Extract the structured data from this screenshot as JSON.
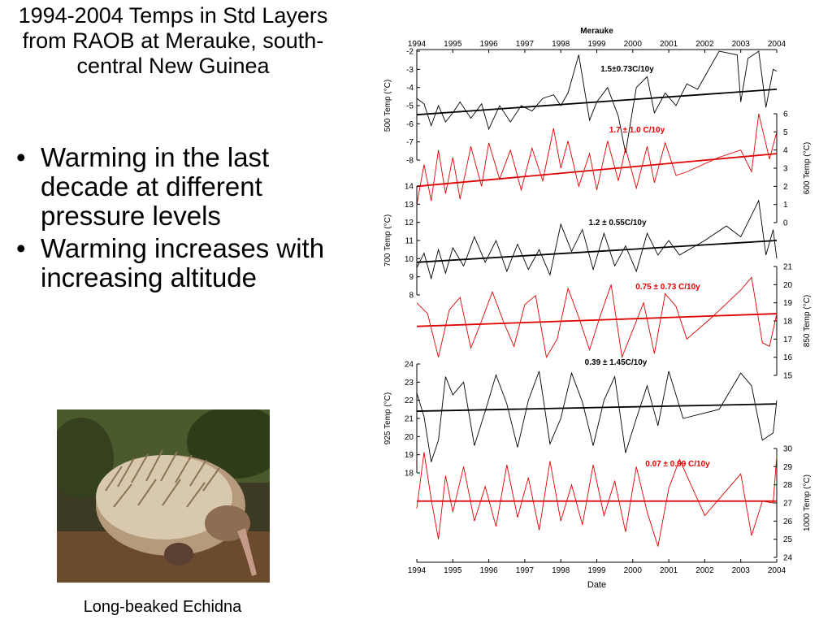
{
  "slide": {
    "title": "1994-2004 Temps in Std Layers from RAOB at Merauke, south-central New Guinea",
    "bullets": [
      "Warming in the last decade at different pressure levels",
      "Warming increases with increasing altitude"
    ],
    "caption": "Long-beaked Echidna"
  },
  "image": {
    "subject": "echidna-photo"
  },
  "chart_data": {
    "type": "line",
    "title": "Merauke",
    "xlabel": "Date",
    "xlim": [
      1994,
      2004
    ],
    "xticks": [
      "1994",
      "1995",
      "1996",
      "1997",
      "1998",
      "1999",
      "2000",
      "2001",
      "2002",
      "2003",
      "2004"
    ],
    "panels": [
      {
        "ylabel": "500 Temp (°C)",
        "side": "left",
        "color": "#000000",
        "ylim": [
          -8,
          -2
        ],
        "yticks": [
          "-2",
          "-3",
          "-4",
          "-5",
          "-6",
          "-7",
          "-8"
        ],
        "trend_label": "1.5±0.73C/10y",
        "trend": [
          [
            1994,
            -5.5
          ],
          [
            2004,
            -4.1
          ]
        ],
        "series": [
          [
            1994.0,
            -4.6
          ],
          [
            1994.2,
            -4.9
          ],
          [
            1994.4,
            -6.1
          ],
          [
            1994.6,
            -5.0
          ],
          [
            1994.8,
            -5.9
          ],
          [
            1995.0,
            -5.4
          ],
          [
            1995.2,
            -4.8
          ],
          [
            1995.5,
            -5.7
          ],
          [
            1995.8,
            -4.9
          ],
          [
            1996.0,
            -6.3
          ],
          [
            1996.3,
            -5.0
          ],
          [
            1996.6,
            -5.9
          ],
          [
            1996.9,
            -5.0
          ],
          [
            1997.2,
            -5.3
          ],
          [
            1997.5,
            -4.6
          ],
          [
            1997.8,
            -4.4
          ],
          [
            1998.0,
            -5.0
          ],
          [
            1998.2,
            -4.3
          ],
          [
            1998.5,
            -2.2
          ],
          [
            1998.8,
            -5.8
          ],
          [
            1999.0,
            -4.8
          ],
          [
            1999.3,
            -4.0
          ],
          [
            1999.6,
            -5.6
          ],
          [
            1999.8,
            -7.6
          ],
          [
            2000.1,
            -4.0
          ],
          [
            2000.4,
            -3.4
          ],
          [
            2000.6,
            -5.4
          ],
          [
            2000.9,
            -4.3
          ],
          [
            2001.2,
            -5.0
          ],
          [
            2001.5,
            -3.8
          ],
          [
            2001.8,
            -4.1
          ],
          [
            2002.4,
            -2.0
          ],
          [
            2002.9,
            -2.2
          ],
          [
            2003.0,
            -4.8
          ],
          [
            2003.2,
            -2.4
          ],
          [
            2003.5,
            -2.0
          ],
          [
            2003.7,
            -5.1
          ],
          [
            2003.9,
            -3.0
          ],
          [
            2004.0,
            -3.1
          ]
        ]
      },
      {
        "ylabel": "600 Temp (°C)",
        "side": "right",
        "color": "#e00000",
        "ylim": [
          0,
          6
        ],
        "yticks": [
          "6",
          "5",
          "4",
          "3",
          "2",
          "1",
          "0"
        ],
        "trend_label": "1.7 ±  1.0 C/10y",
        "trend": [
          [
            1994,
            2.0
          ],
          [
            2004,
            3.8
          ]
        ],
        "series": [
          [
            1994.0,
            1.0
          ],
          [
            1994.2,
            3.2
          ],
          [
            1994.4,
            1.2
          ],
          [
            1994.6,
            4.0
          ],
          [
            1994.8,
            1.6
          ],
          [
            1995.0,
            3.6
          ],
          [
            1995.2,
            1.3
          ],
          [
            1995.5,
            4.2
          ],
          [
            1995.8,
            2.0
          ],
          [
            1996.0,
            4.4
          ],
          [
            1996.3,
            2.4
          ],
          [
            1996.6,
            4.0
          ],
          [
            1996.9,
            1.8
          ],
          [
            1997.2,
            4.1
          ],
          [
            1997.5,
            2.3
          ],
          [
            1997.8,
            5.2
          ],
          [
            1998.0,
            3.0
          ],
          [
            1998.2,
            4.5
          ],
          [
            1998.5,
            2.0
          ],
          [
            1998.8,
            3.8
          ],
          [
            1999.0,
            1.8
          ],
          [
            1999.3,
            4.5
          ],
          [
            1999.6,
            2.3
          ],
          [
            1999.8,
            4.1
          ],
          [
            2000.1,
            1.9
          ],
          [
            2000.4,
            4.2
          ],
          [
            2000.6,
            2.2
          ],
          [
            2000.9,
            4.4
          ],
          [
            2001.2,
            2.6
          ],
          [
            2001.5,
            2.8
          ],
          [
            2002.4,
            3.6
          ],
          [
            2003.0,
            4.0
          ],
          [
            2003.3,
            2.8
          ],
          [
            2003.5,
            6.0
          ],
          [
            2003.8,
            3.5
          ],
          [
            2004.0,
            5.0
          ]
        ]
      },
      {
        "ylabel": "700 Temp (°C)",
        "side": "left",
        "color": "#000000",
        "ylim": [
          8,
          14
        ],
        "yticks": [
          "14",
          "13",
          "12",
          "11",
          "10",
          "9",
          "8"
        ],
        "trend_label": "1.2 ± 0.55C/10y",
        "trend": [
          [
            1994,
            9.8
          ],
          [
            2004,
            11.0
          ]
        ],
        "series": [
          [
            1994.0,
            9.5
          ],
          [
            1994.2,
            10.3
          ],
          [
            1994.4,
            8.9
          ],
          [
            1994.6,
            10.5
          ],
          [
            1994.8,
            9.2
          ],
          [
            1995.0,
            10.6
          ],
          [
            1995.3,
            9.6
          ],
          [
            1995.6,
            11.2
          ],
          [
            1995.9,
            9.8
          ],
          [
            1996.2,
            11.0
          ],
          [
            1996.5,
            9.3
          ],
          [
            1996.8,
            10.8
          ],
          [
            1997.1,
            9.4
          ],
          [
            1997.4,
            10.5
          ],
          [
            1997.7,
            9.1
          ],
          [
            1998.0,
            11.9
          ],
          [
            1998.3,
            10.4
          ],
          [
            1998.6,
            11.6
          ],
          [
            1998.9,
            9.4
          ],
          [
            1999.2,
            11.4
          ],
          [
            1999.5,
            9.6
          ],
          [
            1999.8,
            10.7
          ],
          [
            2000.1,
            9.3
          ],
          [
            2000.4,
            11.4
          ],
          [
            2000.7,
            10.2
          ],
          [
            2001.0,
            11.0
          ],
          [
            2001.3,
            10.2
          ],
          [
            2002.0,
            11.0
          ],
          [
            2002.6,
            11.8
          ],
          [
            2003.0,
            11.2
          ],
          [
            2003.3,
            12.4
          ],
          [
            2003.5,
            13.2
          ],
          [
            2003.7,
            10.2
          ],
          [
            2003.9,
            11.6
          ],
          [
            2004.0,
            10.0
          ]
        ]
      },
      {
        "ylabel": "850 Temp (°C)",
        "side": "right",
        "color": "#e00000",
        "ylim": [
          15,
          21
        ],
        "yticks": [
          "21",
          "20",
          "19",
          "18",
          "17",
          "16",
          "15"
        ],
        "trend_label": "0.75 ± 0.73 C/10y",
        "trend": [
          [
            1994,
            17.7
          ],
          [
            2004,
            18.4
          ]
        ],
        "series": [
          [
            1994.0,
            19.0
          ],
          [
            1994.3,
            18.4
          ],
          [
            1994.6,
            16.0
          ],
          [
            1994.9,
            18.6
          ],
          [
            1995.2,
            19.3
          ],
          [
            1995.5,
            16.5
          ],
          [
            1995.8,
            18.0
          ],
          [
            1996.1,
            19.6
          ],
          [
            1996.4,
            18.0
          ],
          [
            1996.7,
            16.6
          ],
          [
            1997.0,
            18.9
          ],
          [
            1997.3,
            19.4
          ],
          [
            1997.6,
            16.0
          ],
          [
            1997.9,
            17.0
          ],
          [
            1998.2,
            19.8
          ],
          [
            1998.5,
            18.2
          ],
          [
            1998.8,
            16.4
          ],
          [
            1999.1,
            18.3
          ],
          [
            1999.4,
            20.0
          ],
          [
            1999.7,
            16.0
          ],
          [
            2000.0,
            17.5
          ],
          [
            2000.3,
            19.0
          ],
          [
            2000.6,
            16.2
          ],
          [
            2000.9,
            19.5
          ],
          [
            2001.2,
            18.8
          ],
          [
            2001.5,
            17.0
          ],
          [
            2002.2,
            18.2
          ],
          [
            2003.0,
            19.7
          ],
          [
            2003.3,
            20.4
          ],
          [
            2003.6,
            16.8
          ],
          [
            2003.8,
            16.6
          ],
          [
            2004.0,
            18.4
          ]
        ]
      },
      {
        "ylabel": "925 Temp (°C)",
        "side": "left",
        "color": "#000000",
        "ylim": [
          18,
          24
        ],
        "yticks": [
          "24",
          "23",
          "22",
          "21",
          "20",
          "19",
          "18"
        ],
        "trend_label": "0.39 ± 1.45C/10y",
        "trend": [
          [
            1994,
            21.4
          ],
          [
            2004,
            21.8
          ]
        ],
        "series": [
          [
            1994.0,
            22.4
          ],
          [
            1994.2,
            21.1
          ],
          [
            1994.4,
            18.6
          ],
          [
            1994.6,
            19.8
          ],
          [
            1994.8,
            23.3
          ],
          [
            1995.0,
            22.3
          ],
          [
            1995.3,
            23.0
          ],
          [
            1995.6,
            19.5
          ],
          [
            1995.9,
            21.4
          ],
          [
            1996.2,
            23.4
          ],
          [
            1996.5,
            21.8
          ],
          [
            1996.8,
            19.4
          ],
          [
            1997.1,
            22.0
          ],
          [
            1997.4,
            23.6
          ],
          [
            1997.7,
            19.6
          ],
          [
            1998.0,
            21.0
          ],
          [
            1998.3,
            23.5
          ],
          [
            1998.6,
            21.9
          ],
          [
            1998.9,
            19.5
          ],
          [
            1999.2,
            22.0
          ],
          [
            1999.5,
            23.3
          ],
          [
            1999.8,
            19.1
          ],
          [
            2000.1,
            21.0
          ],
          [
            2000.4,
            22.8
          ],
          [
            2000.7,
            20.6
          ],
          [
            2001.0,
            23.6
          ],
          [
            2001.4,
            21.0
          ],
          [
            2002.4,
            21.5
          ],
          [
            2003.0,
            23.5
          ],
          [
            2003.3,
            22.8
          ],
          [
            2003.6,
            19.8
          ],
          [
            2003.9,
            20.2
          ],
          [
            2004.0,
            22.0
          ]
        ]
      },
      {
        "ylabel": "1000 Temp (°C)",
        "side": "right",
        "color": "#e00000",
        "ylim": [
          24,
          30
        ],
        "yticks": [
          "30",
          "29",
          "28",
          "27",
          "26",
          "25",
          "24"
        ],
        "trend_label": "0.07 ± 0.99 C/10y",
        "trend": [
          [
            1994,
            27.1
          ],
          [
            2004,
            27.1
          ]
        ],
        "series": [
          [
            1994.0,
            26.7
          ],
          [
            1994.2,
            29.8
          ],
          [
            1994.4,
            27.2
          ],
          [
            1994.6,
            25.0
          ],
          [
            1994.8,
            28.5
          ],
          [
            1995.0,
            26.5
          ],
          [
            1995.3,
            29.0
          ],
          [
            1995.6,
            26.0
          ],
          [
            1995.9,
            27.9
          ],
          [
            1996.2,
            25.7
          ],
          [
            1996.5,
            29.1
          ],
          [
            1996.8,
            26.2
          ],
          [
            1997.1,
            28.4
          ],
          [
            1997.4,
            25.5
          ],
          [
            1997.7,
            29.3
          ],
          [
            1998.0,
            26.0
          ],
          [
            1998.3,
            28.0
          ],
          [
            1998.6,
            25.8
          ],
          [
            1998.9,
            29.1
          ],
          [
            1999.2,
            26.3
          ],
          [
            1999.5,
            28.2
          ],
          [
            1999.8,
            25.4
          ],
          [
            2000.1,
            29.0
          ],
          [
            2000.4,
            26.5
          ],
          [
            2000.7,
            24.6
          ],
          [
            2001.0,
            27.8
          ],
          [
            2001.3,
            29.4
          ],
          [
            2002.0,
            26.3
          ],
          [
            2003.0,
            28.6
          ],
          [
            2003.3,
            25.2
          ],
          [
            2003.6,
            27.1
          ],
          [
            2003.9,
            27.0
          ],
          [
            2004.0,
            29.6
          ]
        ]
      }
    ]
  }
}
